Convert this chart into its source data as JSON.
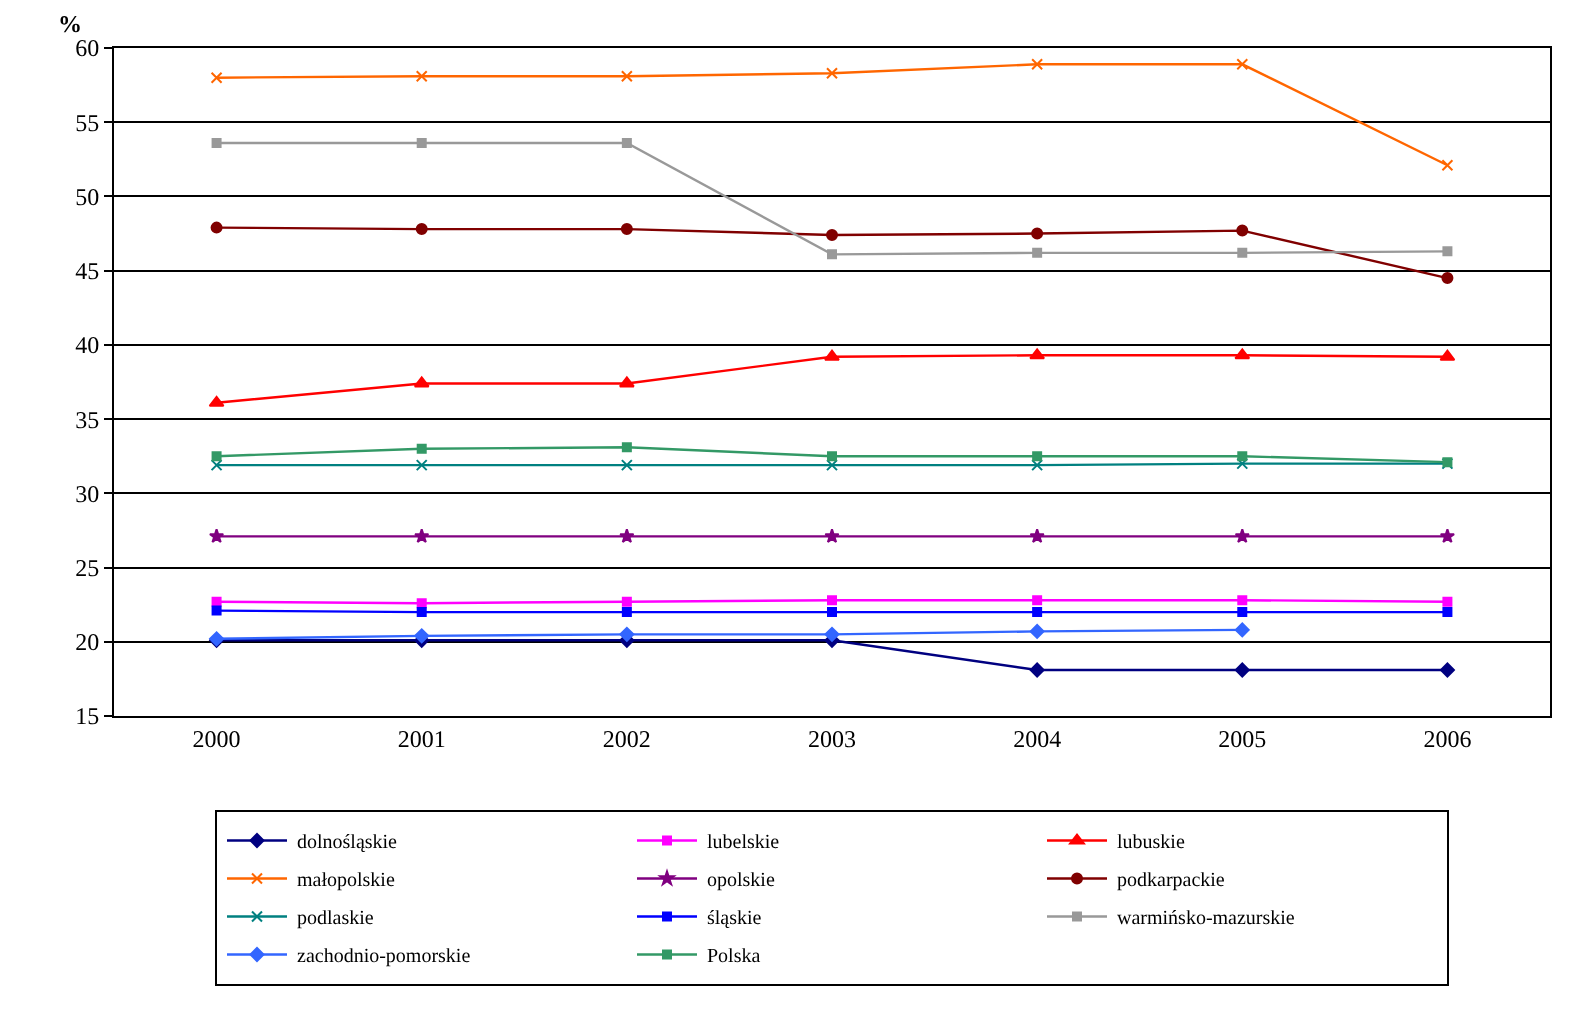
{
  "chart_data": {
    "type": "line",
    "ylabel": "%",
    "categories": [
      "2000",
      "2001",
      "2002",
      "2003",
      "2004",
      "2005",
      "2006"
    ],
    "ylim": [
      15,
      60
    ],
    "yticks": [
      15,
      20,
      25,
      30,
      35,
      40,
      45,
      50,
      55,
      60
    ],
    "grid": "y",
    "legend": "bottom",
    "series": [
      {
        "name": "dolnośląskie",
        "color": "#000080",
        "marker": "diamond",
        "values": [
          20.1,
          20.1,
          20.1,
          20.1,
          18.1,
          18.1,
          18.1
        ]
      },
      {
        "name": "lubelskie",
        "color": "#ff00ff",
        "marker": "square",
        "values": [
          22.7,
          22.6,
          22.7,
          22.8,
          22.8,
          22.8,
          22.7
        ]
      },
      {
        "name": "lubuskie",
        "color": "#ff0000",
        "marker": "triangle",
        "values": [
          36.1,
          37.4,
          37.4,
          39.2,
          39.3,
          39.3,
          39.2
        ]
      },
      {
        "name": "małopolskie",
        "color": "#ff6600",
        "marker": "cross",
        "values": [
          58.0,
          58.1,
          58.1,
          58.3,
          58.9,
          58.9,
          52.1
        ]
      },
      {
        "name": "opolskie",
        "color": "#800080",
        "marker": "star",
        "values": [
          27.1,
          27.1,
          27.1,
          27.1,
          27.1,
          27.1,
          27.1
        ]
      },
      {
        "name": "podkarpackie",
        "color": "#800000",
        "marker": "circle",
        "values": [
          47.9,
          47.8,
          47.8,
          47.4,
          47.5,
          47.7,
          44.5
        ]
      },
      {
        "name": "podlaskie",
        "color": "#008080",
        "marker": "cross",
        "values": [
          31.9,
          31.9,
          31.9,
          31.9,
          31.9,
          32.0,
          32.0
        ]
      },
      {
        "name": "śląskie",
        "color": "#0000ff",
        "marker": "square",
        "values": [
          22.1,
          22.0,
          22.0,
          22.0,
          22.0,
          22.0,
          22.0
        ]
      },
      {
        "name": "warmińsko-mazurskie",
        "color": "#999999",
        "marker": "square",
        "values": [
          53.6,
          53.6,
          53.6,
          46.1,
          46.2,
          46.2,
          46.3
        ]
      },
      {
        "name": "zachodnio-pomorskie",
        "color": "#3366ff",
        "marker": "diamond",
        "values": [
          20.2,
          20.4,
          20.5,
          20.5,
          20.7,
          20.8,
          null
        ]
      },
      {
        "name": "Polska",
        "color": "#339966",
        "marker": "square",
        "values": [
          32.5,
          33.0,
          33.1,
          32.5,
          32.5,
          32.5,
          32.1
        ]
      }
    ]
  }
}
